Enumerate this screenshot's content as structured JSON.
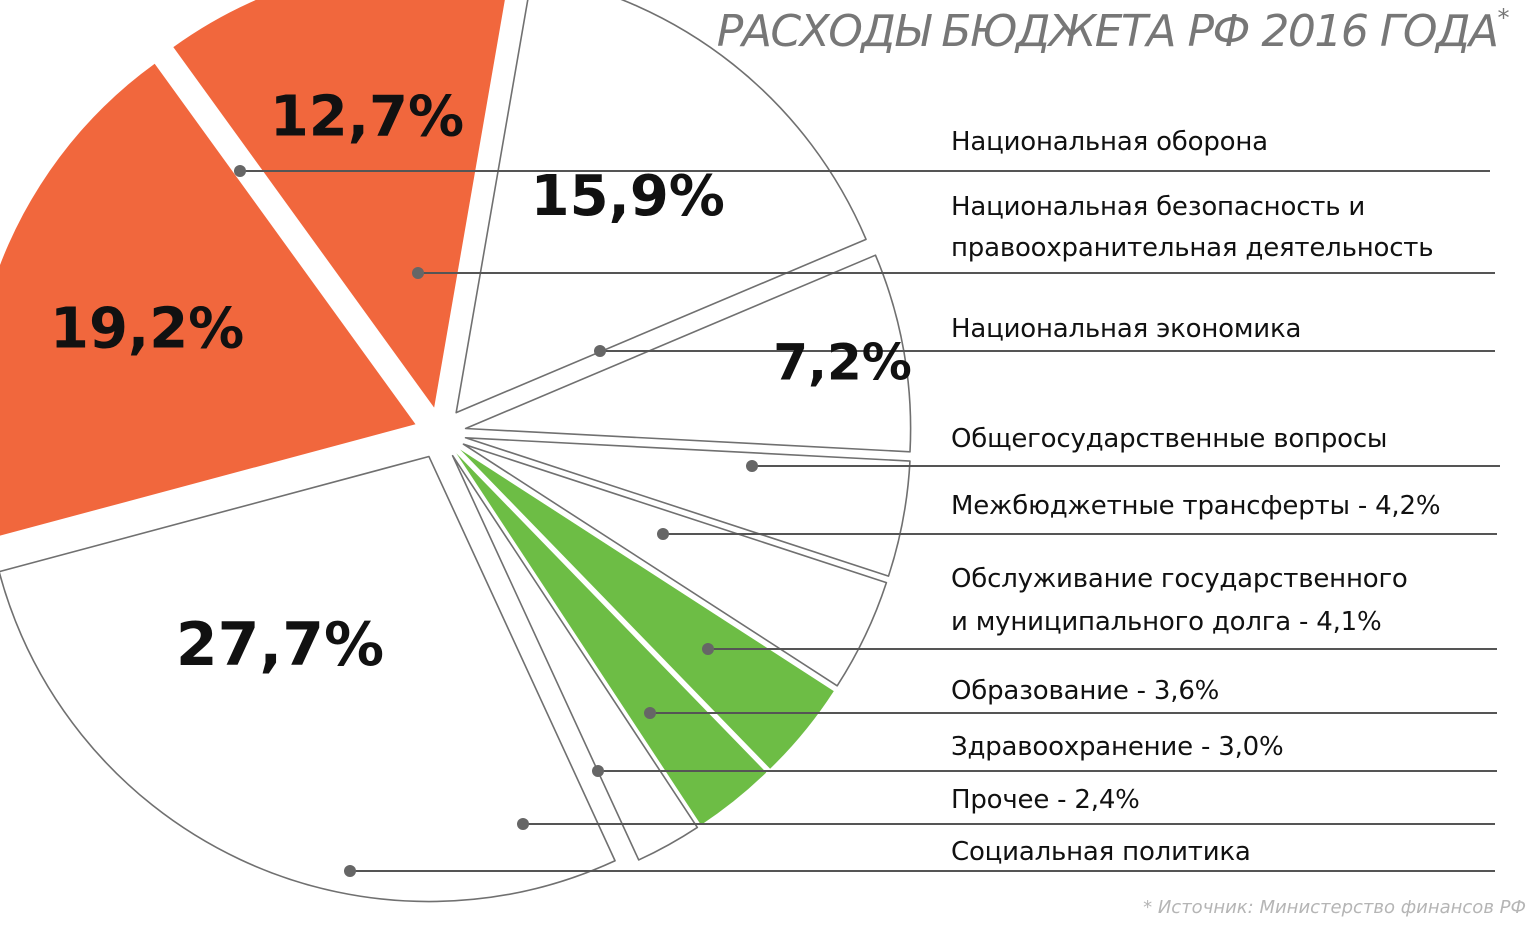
{
  "title": "РАСХОДЫ БЮДЖЕТА РФ 2016 ГОДА",
  "title_mark": "*",
  "source": "* Источник: Министерство финансов РФ",
  "colors": {
    "highlight_orange": "#f1673d",
    "highlight_green": "#6dbd45",
    "default_fill": "#ffffff",
    "outline": "#707070",
    "leader": "#555555"
  },
  "chart_data": {
    "type": "pie",
    "title": "РАСХОДЫ БЮДЖЕТА РФ 2016 ГОДА",
    "legend": "right, with leader lines",
    "slices": [
      {
        "label": "Национальная оборона",
        "value": 19.2,
        "value_label": "19,2%",
        "color": "#f1673d"
      },
      {
        "label": "Национальная безопасность и правоохранительная деятельность",
        "value": 12.7,
        "value_label": "12,7%",
        "color": "#f1673d"
      },
      {
        "label": "Национальная экономика",
        "value": 15.9,
        "value_label": "15,9%",
        "color": "#ffffff"
      },
      {
        "label": "Общегосударственные вопросы",
        "value": 7.2,
        "value_label": "7,2%",
        "color": "#ffffff"
      },
      {
        "label": "Межбюджетные трансферты - 4,2%",
        "value": 4.2,
        "value_label": "",
        "color": "#ffffff"
      },
      {
        "label": "Обслуживание государственного и муниципального долга - 4,1%",
        "value": 4.1,
        "value_label": "",
        "color": "#ffffff"
      },
      {
        "label": "Образование - 3,6%",
        "value": 3.6,
        "value_label": "",
        "color": "#6dbd45"
      },
      {
        "label": "Здравоохранение - 3,0%",
        "value": 3.0,
        "value_label": "",
        "color": "#6dbd45"
      },
      {
        "label": "Прочее - 2,4%",
        "value": 2.4,
        "value_label": "",
        "color": "#ffffff"
      },
      {
        "label": "Социальная политика",
        "value": 27.7,
        "value_label": "27,7%",
        "color": "#ffffff"
      }
    ]
  },
  "labels": {
    "defense": "Национальная оборона",
    "security_l1": "Национальная безопасность и",
    "security_l2": "правоохранительная деятельность",
    "economy": "Национальная экономика",
    "general": "Общегосударственные вопросы",
    "transfers": "Межбюджетные трансферты - 4,2%",
    "debt_l1": "Обслуживание государственного",
    "debt_l2": "и муниципального долга - 4,1%",
    "education": "Образование - 3,6%",
    "health": "Здравоохранение - 3,0%",
    "other": "Прочее - 2,4%",
    "social": "Социальная политика"
  }
}
